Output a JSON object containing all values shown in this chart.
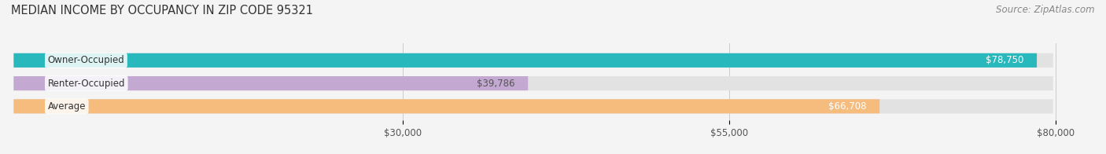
{
  "title": "MEDIAN INCOME BY OCCUPANCY IN ZIP CODE 95321",
  "source": "Source: ZipAtlas.com",
  "categories": [
    "Owner-Occupied",
    "Renter-Occupied",
    "Average"
  ],
  "values": [
    78750,
    39786,
    66708
  ],
  "bar_colors": [
    "#29b8bc",
    "#c3a8d1",
    "#f5bc7e"
  ],
  "bar_labels": [
    "$78,750",
    "$39,786",
    "$66,708"
  ],
  "value_label_colors": [
    "white",
    "#555555",
    "white"
  ],
  "xlim_min": 0,
  "xlim_max": 83000,
  "data_max": 80000,
  "xticks": [
    30000,
    55000,
    80000
  ],
  "xtick_labels": [
    "$30,000",
    "$55,000",
    "$80,000"
  ],
  "bg_color": "#f4f4f4",
  "bar_bg_color": "#e2e2e2",
  "title_fontsize": 10.5,
  "label_fontsize": 8.5,
  "source_fontsize": 8.5
}
